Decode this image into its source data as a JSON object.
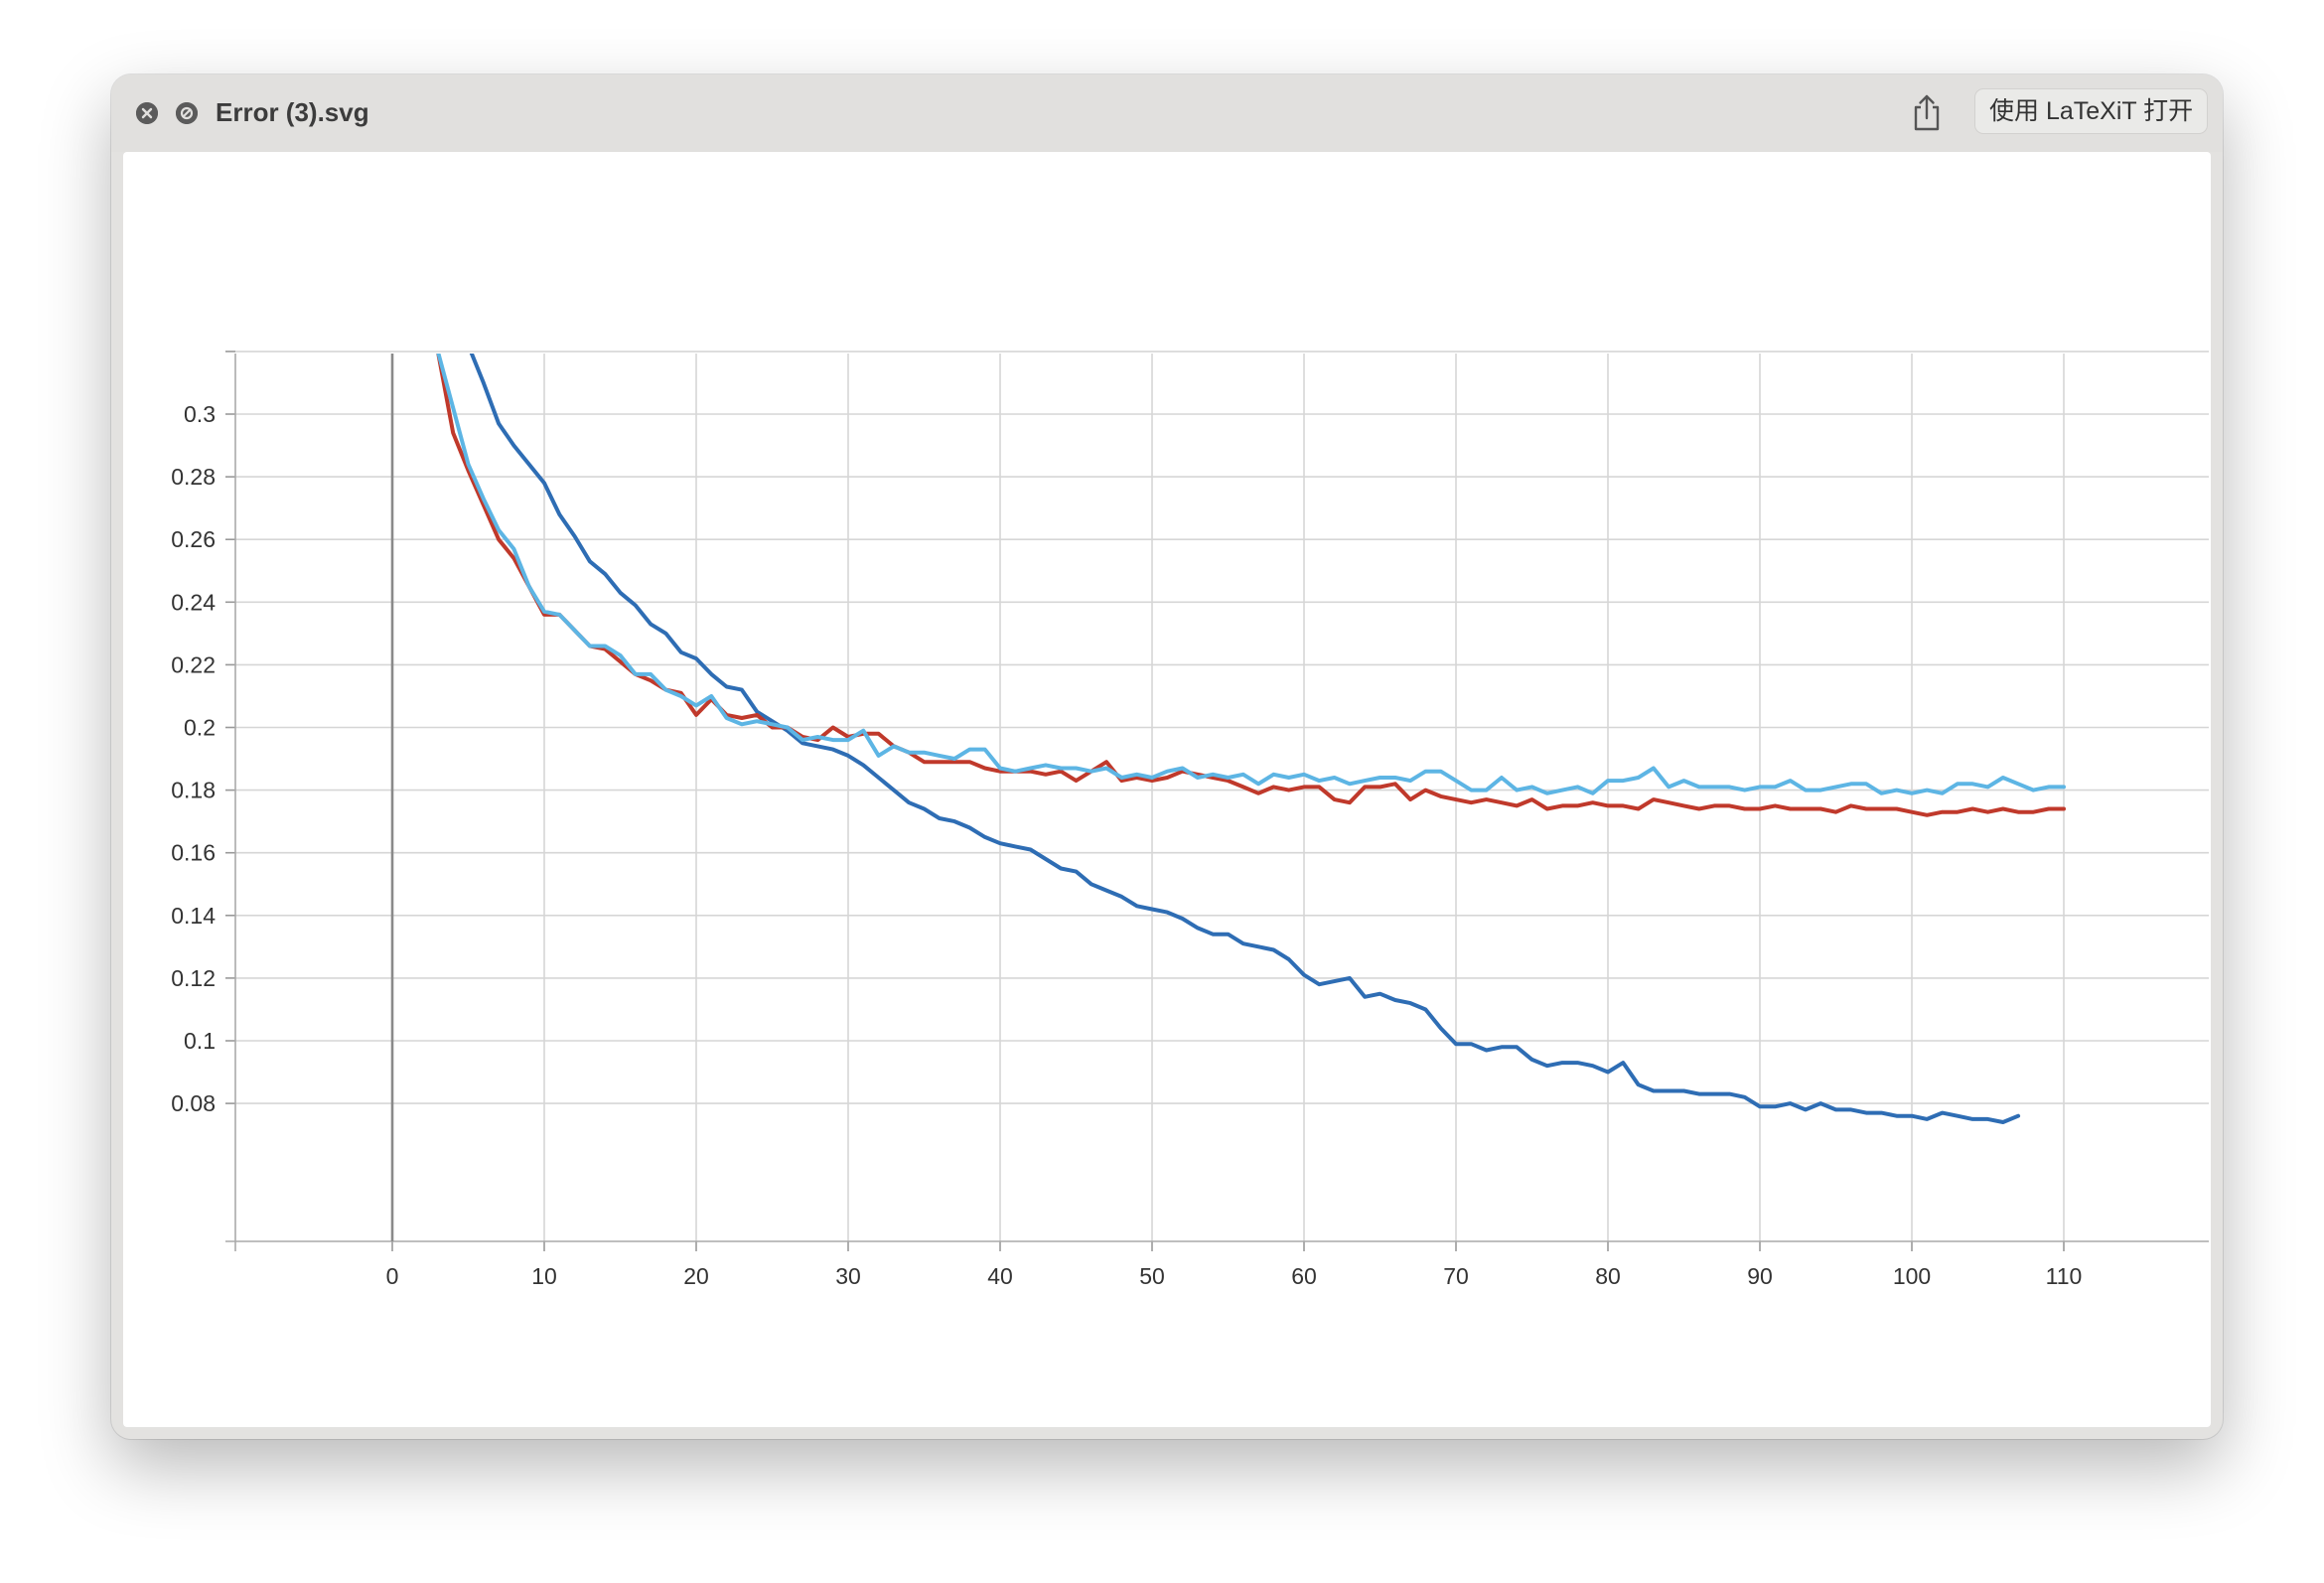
{
  "window": {
    "title": "Error (3).svg",
    "close_icon": "close-circle-icon",
    "other_icon": "slash-circle-icon",
    "share_icon": "share-icon",
    "open_with_label": "使用 LaTeXiT 打开"
  },
  "chart_data": {
    "type": "line",
    "title": "",
    "xlabel": "",
    "ylabel": "",
    "xlim": [
      -10,
      120
    ],
    "ylim": [
      0.06,
      0.32
    ],
    "x_ticks": [
      0,
      10,
      20,
      30,
      40,
      50,
      60,
      70,
      80,
      90,
      100,
      110
    ],
    "y_ticks": [
      0.08,
      0.1,
      0.12,
      0.14,
      0.16,
      0.18,
      0.2,
      0.22,
      0.24,
      0.26,
      0.28,
      0.3
    ],
    "y_tick_labels": [
      "0.08",
      "0.1",
      "0.12",
      "0.14",
      "0.16",
      "0.18",
      "0.2",
      "0.22",
      "0.24",
      "0.26",
      "0.28",
      "0.3"
    ],
    "grid": true,
    "legend": "none",
    "series": [
      {
        "color": "#2e6db4",
        "x_start": 5,
        "x_step": 1,
        "y": [
          0.322,
          0.31,
          0.297,
          0.29,
          0.284,
          0.278,
          0.268,
          0.261,
          0.253,
          0.249,
          0.243,
          0.239,
          0.233,
          0.23,
          0.224,
          0.222,
          0.217,
          0.213,
          0.212,
          0.205,
          0.202,
          0.199,
          0.195,
          0.194,
          0.193,
          0.191,
          0.188,
          0.184,
          0.18,
          0.176,
          0.174,
          0.171,
          0.17,
          0.168,
          0.165,
          0.163,
          0.162,
          0.161,
          0.158,
          0.155,
          0.154,
          0.15,
          0.148,
          0.146,
          0.143,
          0.142,
          0.141,
          0.139,
          0.136,
          0.134,
          0.134,
          0.131,
          0.13,
          0.129,
          0.126,
          0.121,
          0.118,
          0.119,
          0.12,
          0.114,
          0.115,
          0.113,
          0.112,
          0.11,
          0.104,
          0.099,
          0.099,
          0.097,
          0.098,
          0.098,
          0.094,
          0.092,
          0.093,
          0.093,
          0.092,
          0.09,
          0.093,
          0.086,
          0.084,
          0.084,
          0.084,
          0.083,
          0.083,
          0.083,
          0.082,
          0.079,
          0.079,
          0.08,
          0.078,
          0.08,
          0.078,
          0.078,
          0.077,
          0.077,
          0.076,
          0.076,
          0.075,
          0.077,
          0.076,
          0.075,
          0.075,
          0.074,
          0.076
        ]
      },
      {
        "color": "#c0392b",
        "x_start": 3,
        "x_step": 1,
        "y": [
          0.32,
          0.294,
          0.282,
          0.271,
          0.26,
          0.254,
          0.245,
          0.236,
          0.236,
          0.231,
          0.226,
          0.225,
          0.221,
          0.217,
          0.215,
          0.212,
          0.211,
          0.204,
          0.209,
          0.204,
          0.203,
          0.204,
          0.2,
          0.2,
          0.197,
          0.196,
          0.2,
          0.197,
          0.198,
          0.198,
          0.194,
          0.192,
          0.189,
          0.189,
          0.189,
          0.189,
          0.187,
          0.186,
          0.186,
          0.186,
          0.185,
          0.186,
          0.183,
          0.186,
          0.189,
          0.183,
          0.184,
          0.183,
          0.184,
          0.186,
          0.185,
          0.184,
          0.183,
          0.181,
          0.179,
          0.181,
          0.18,
          0.181,
          0.181,
          0.177,
          0.176,
          0.181,
          0.181,
          0.182,
          0.177,
          0.18,
          0.178,
          0.177,
          0.176,
          0.177,
          0.176,
          0.175,
          0.177,
          0.174,
          0.175,
          0.175,
          0.176,
          0.175,
          0.175,
          0.174,
          0.177,
          0.176,
          0.175,
          0.174,
          0.175,
          0.175,
          0.174,
          0.174,
          0.175,
          0.174,
          0.174,
          0.174,
          0.173,
          0.175,
          0.174,
          0.174,
          0.174,
          0.173,
          0.172,
          0.173,
          0.173,
          0.174,
          0.173,
          0.174,
          0.173,
          0.173,
          0.174,
          0.174
        ]
      },
      {
        "color": "#5db5e4",
        "x_start": 3,
        "x_step": 1,
        "y": [
          0.32,
          0.302,
          0.284,
          0.273,
          0.263,
          0.257,
          0.245,
          0.237,
          0.236,
          0.231,
          0.226,
          0.226,
          0.223,
          0.217,
          0.217,
          0.212,
          0.21,
          0.207,
          0.21,
          0.203,
          0.201,
          0.202,
          0.201,
          0.2,
          0.196,
          0.197,
          0.196,
          0.196,
          0.199,
          0.191,
          0.194,
          0.192,
          0.192,
          0.191,
          0.19,
          0.193,
          0.193,
          0.187,
          0.186,
          0.187,
          0.188,
          0.187,
          0.187,
          0.186,
          0.187,
          0.184,
          0.185,
          0.184,
          0.186,
          0.187,
          0.184,
          0.185,
          0.184,
          0.185,
          0.182,
          0.185,
          0.184,
          0.185,
          0.183,
          0.184,
          0.182,
          0.183,
          0.184,
          0.184,
          0.183,
          0.186,
          0.186,
          0.183,
          0.18,
          0.18,
          0.184,
          0.18,
          0.181,
          0.179,
          0.18,
          0.181,
          0.179,
          0.183,
          0.183,
          0.184,
          0.187,
          0.181,
          0.183,
          0.181,
          0.181,
          0.181,
          0.18,
          0.181,
          0.181,
          0.183,
          0.18,
          0.18,
          0.181,
          0.182,
          0.182,
          0.179,
          0.18,
          0.179,
          0.18,
          0.179,
          0.182,
          0.182,
          0.181,
          0.184,
          0.182,
          0.18,
          0.181,
          0.181
        ]
      }
    ]
  }
}
